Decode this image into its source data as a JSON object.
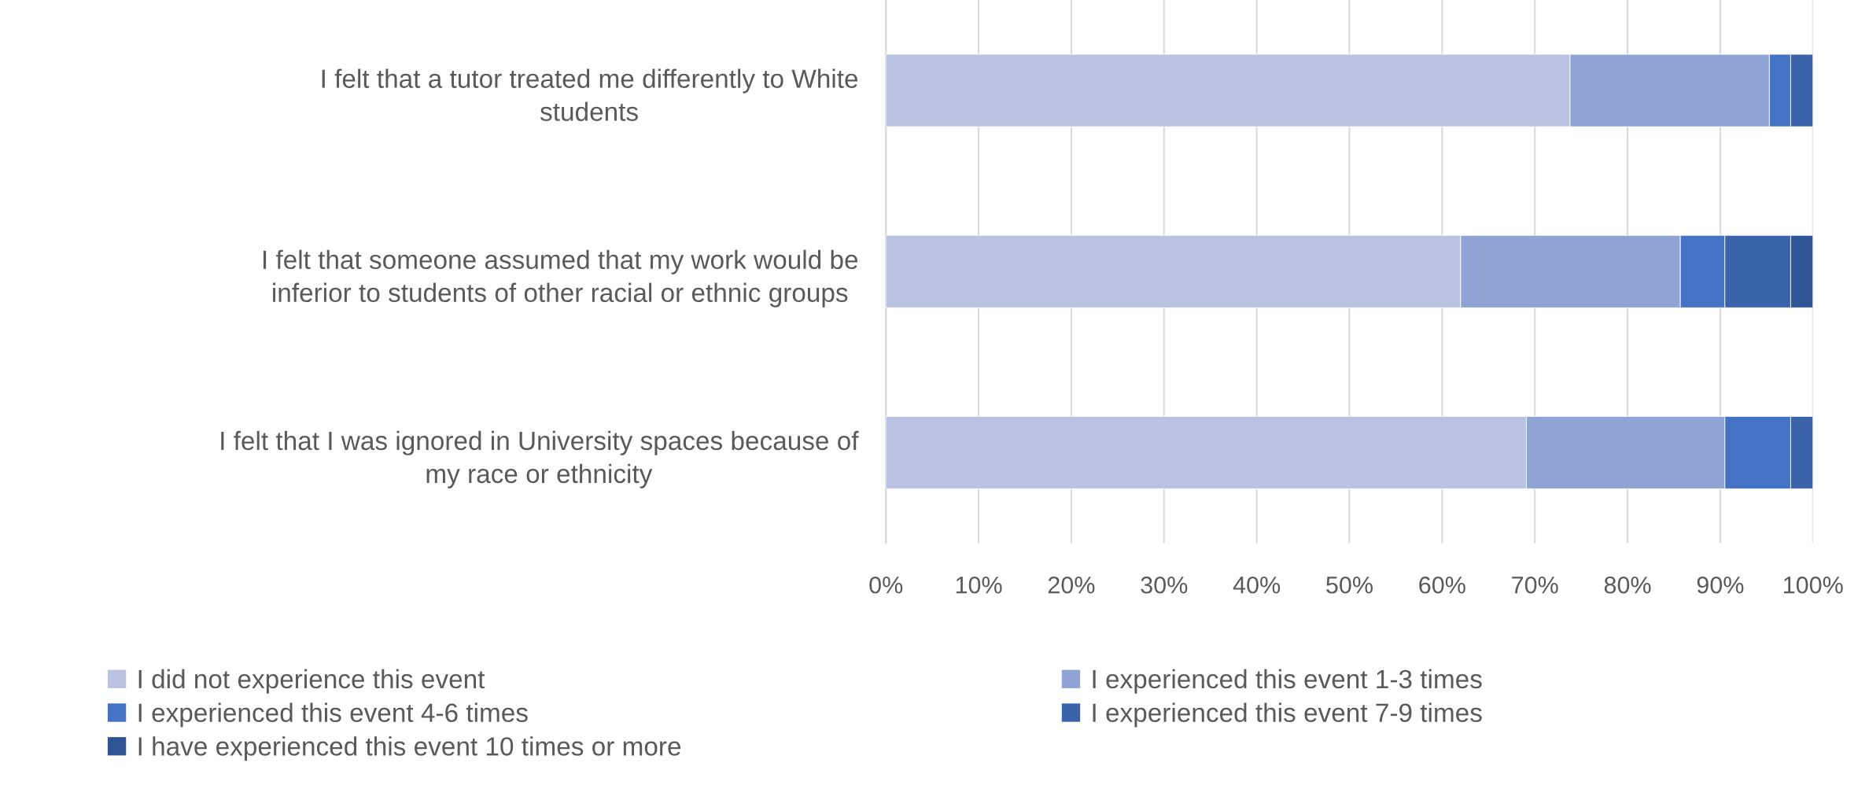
{
  "chart_data": {
    "type": "bar",
    "orientation": "horizontal",
    "stacked": true,
    "categories": [
      "I felt that a tutor treated me differently to White\nstudents",
      "I felt that someone assumed that my work would be\ninferior to students of other racial or ethnic groups",
      "I felt that I was ignored in University spaces because of\nmy race or ethnicity"
    ],
    "series": [
      {
        "name": "I did not experience this event",
        "color": "#b9c3e1",
        "values": [
          73.8,
          62.0,
          69.1
        ]
      },
      {
        "name": "I experienced this event 1-3 times",
        "color": "#8fa3d4",
        "values": [
          21.5,
          23.7,
          21.4
        ]
      },
      {
        "name": "I experienced this event 4-6 times",
        "color": "#4472c4",
        "values": [
          2.3,
          4.8,
          7.1
        ]
      },
      {
        "name": "I experienced this event 7-9 times",
        "color": "#3a63ab",
        "values": [
          2.4,
          7.1,
          2.4
        ]
      },
      {
        "name": "I have experienced this event 10 times or more",
        "color": "#2f5597",
        "values": [
          null,
          2.4,
          null
        ]
      }
    ],
    "xlim": [
      0,
      100
    ],
    "xticks": [
      {
        "value": 0,
        "label": "0%"
      },
      {
        "value": 10,
        "label": "10%"
      },
      {
        "value": 20,
        "label": "20%"
      },
      {
        "value": 30,
        "label": "30%"
      },
      {
        "value": 40,
        "label": "40%"
      },
      {
        "value": 50,
        "label": "50%"
      },
      {
        "value": 60,
        "label": "60%"
      },
      {
        "value": 70,
        "label": "70%"
      },
      {
        "value": 80,
        "label": "80%"
      },
      {
        "value": 90,
        "label": "90%"
      },
      {
        "value": 100,
        "label": "100%"
      }
    ],
    "grid": "x",
    "legend": "bottom"
  }
}
